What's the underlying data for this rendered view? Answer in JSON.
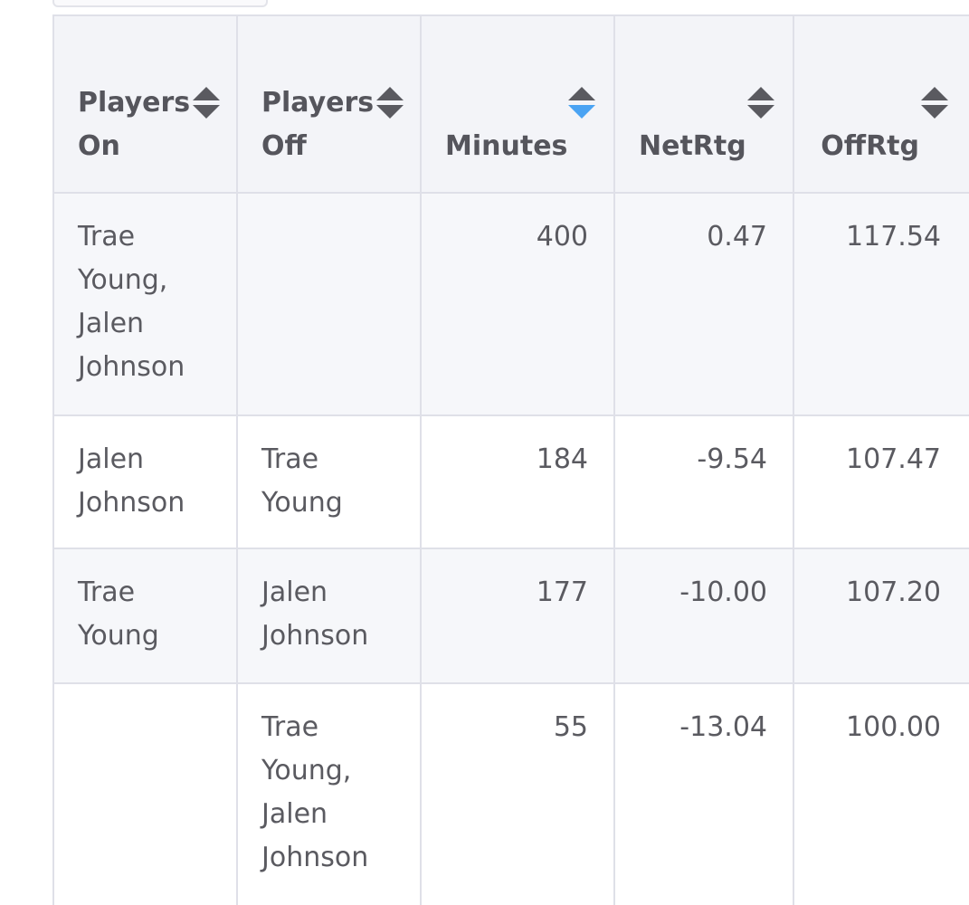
{
  "table": {
    "columns": [
      {
        "label": "Players On",
        "sort": "none"
      },
      {
        "label": "Players Off",
        "sort": "none"
      },
      {
        "label": "Minutes",
        "sort": "descending"
      },
      {
        "label": "NetRtg",
        "sort": "none"
      },
      {
        "label": "OffRtg",
        "sort": "none"
      }
    ],
    "rows": [
      {
        "players_on": "Trae Young, Jalen Johnson",
        "players_off": "",
        "minutes": "400",
        "netrtg": "0.47",
        "offrtg": "117.54"
      },
      {
        "players_on": "Jalen Johnson",
        "players_off": "Trae Young",
        "minutes": "184",
        "netrtg": "-9.54",
        "offrtg": "107.47"
      },
      {
        "players_on": "Trae Young",
        "players_off": "Jalen Johnson",
        "minutes": "177",
        "netrtg": "-10.00",
        "offrtg": "107.20"
      },
      {
        "players_on": "",
        "players_off": "Trae Young, Jalen Johnson",
        "minutes": "55",
        "netrtg": "-13.04",
        "offrtg": "100.00"
      }
    ]
  },
  "icons": {
    "sort": "sort-updown-icon",
    "active_sort_color": "#4aa3f3"
  }
}
